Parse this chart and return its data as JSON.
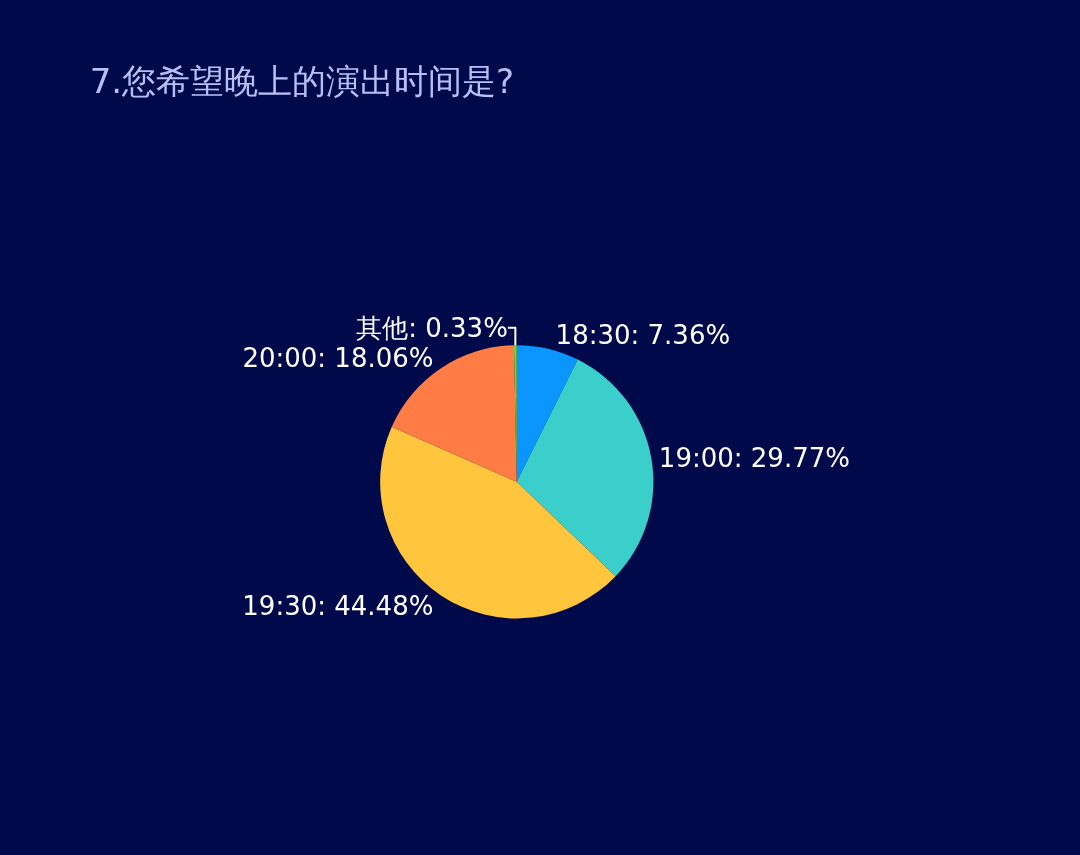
{
  "chart_data": {
    "type": "pie",
    "title": "7.您希望晚上的演出时间是?",
    "categories": [
      "18:30",
      "19:00",
      "19:30",
      "20:00",
      "其他"
    ],
    "values": [
      7.36,
      29.77,
      44.48,
      18.06,
      0.33
    ],
    "value_labels": [
      "7.36%",
      "29.77%",
      "44.48%",
      "18.06%",
      "0.33%"
    ],
    "colors": [
      "#0a95ff",
      "#3bcfcb",
      "#ffc53d",
      "#ff7c44",
      "#7ad03a"
    ],
    "legend": false
  }
}
